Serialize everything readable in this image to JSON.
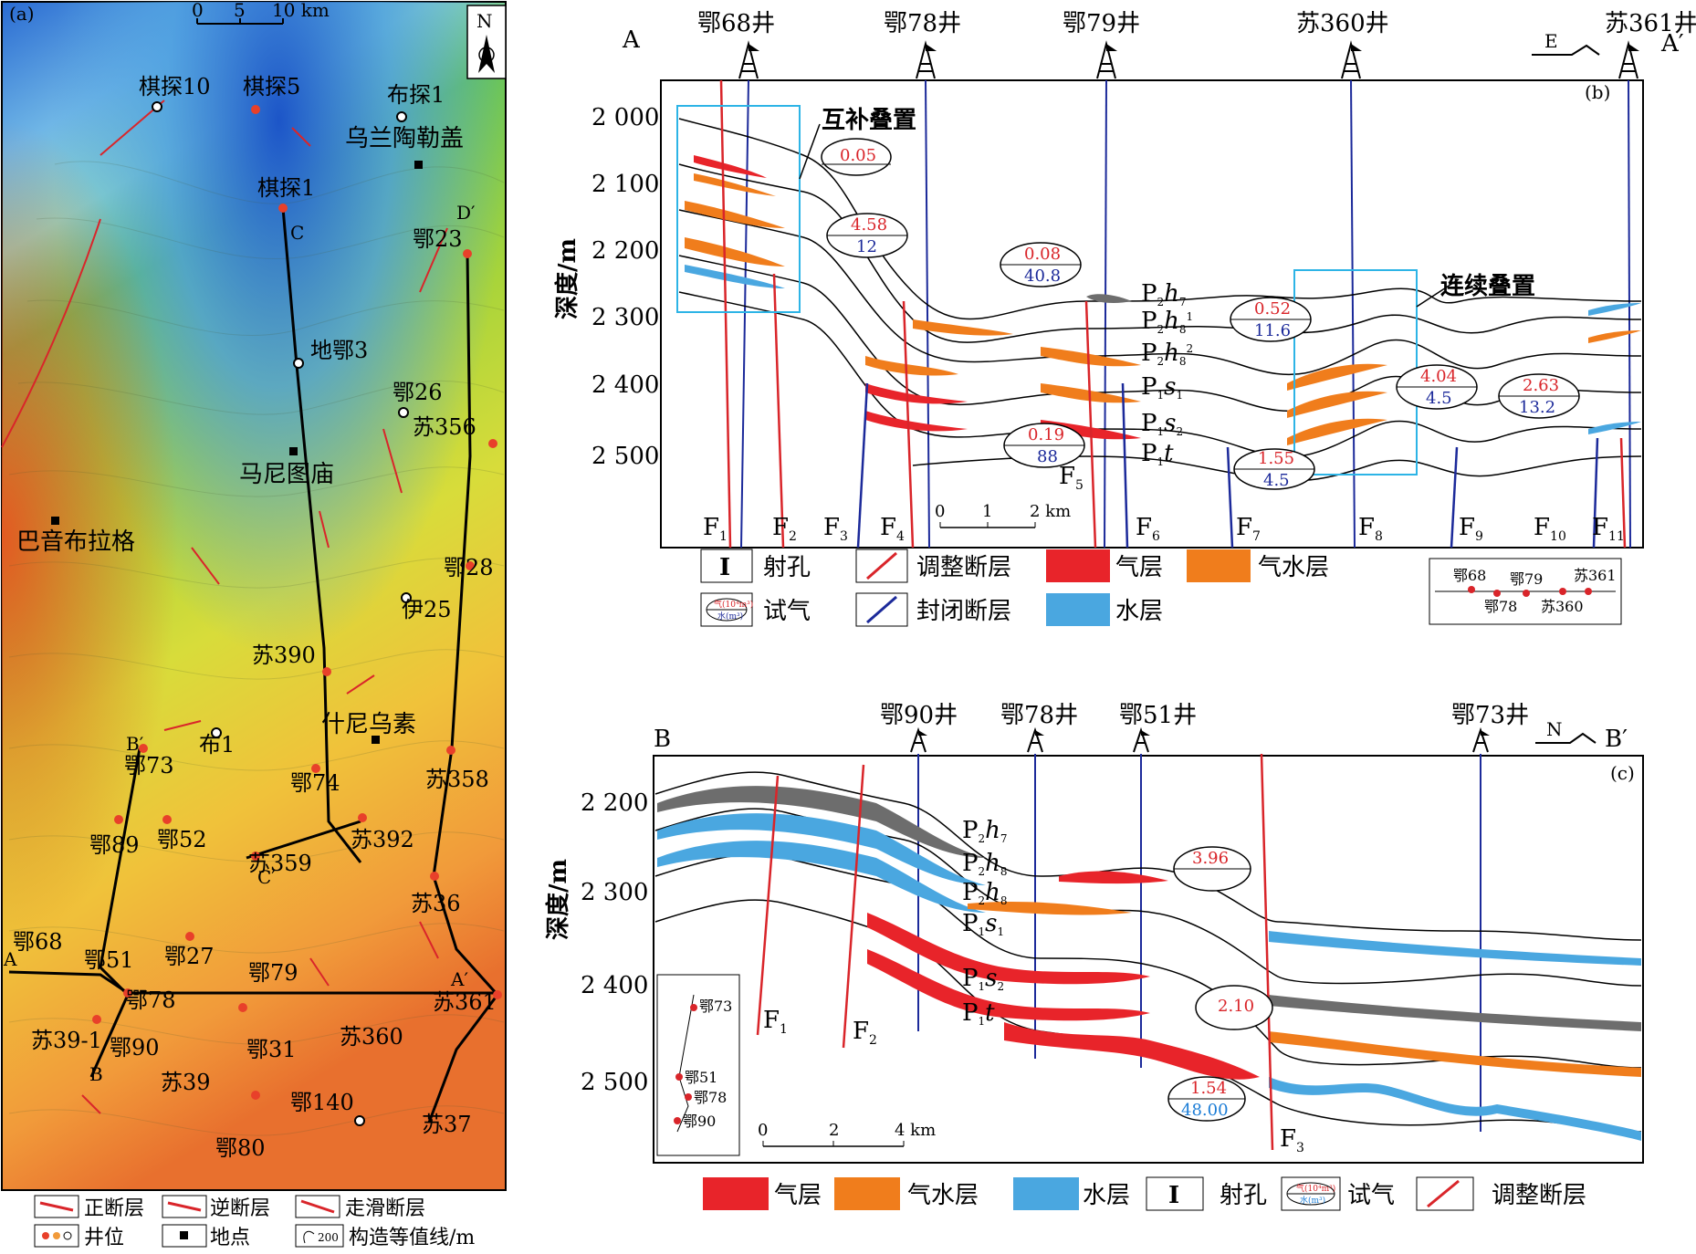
{
  "colors": {
    "gas": "#e8242a",
    "gas_water": "#f07d1c",
    "water": "#4aa7e0",
    "fault_adjust": "#d9252a",
    "fault_sealed": "#1c2a9a",
    "gray_layer": "#6d6d6d",
    "box": "#2db4e6",
    "test_red": "#d9252a",
    "test_blue": "#1c2a9a"
  },
  "map": {
    "panel_label": "(a)",
    "scale": [
      "0",
      "5",
      "10 km"
    ],
    "north": "N",
    "wells": [
      {
        "name": "棋探10"
      },
      {
        "name": "棋探5"
      },
      {
        "name": "布探1"
      },
      {
        "name": "棋探1"
      },
      {
        "name": "鄂23"
      },
      {
        "name": "地鄂3"
      },
      {
        "name": "鄂26"
      },
      {
        "name": "苏356"
      },
      {
        "name": "鄂28"
      },
      {
        "name": "伊25"
      },
      {
        "name": "苏390"
      },
      {
        "name": "布1"
      },
      {
        "name": "鄂73"
      },
      {
        "name": "鄂74"
      },
      {
        "name": "苏358"
      },
      {
        "name": "鄂89"
      },
      {
        "name": "鄂52"
      },
      {
        "name": "苏392"
      },
      {
        "name": "苏359"
      },
      {
        "name": "苏36"
      },
      {
        "name": "鄂68"
      },
      {
        "name": "鄂51"
      },
      {
        "name": "鄂27"
      },
      {
        "name": "鄂79"
      },
      {
        "name": "鄂78"
      },
      {
        "name": "苏361"
      },
      {
        "name": "苏39-1"
      },
      {
        "name": "鄂90"
      },
      {
        "name": "鄂31"
      },
      {
        "name": "苏360"
      },
      {
        "name": "苏39"
      },
      {
        "name": "鄂140"
      },
      {
        "name": "苏37"
      },
      {
        "name": "鄂80"
      }
    ],
    "places": [
      "乌兰陶勒盖",
      "马尼图庙",
      "巴音布拉格",
      "什尼乌素"
    ],
    "section_letters": [
      "C",
      "D′",
      "B′",
      "C′",
      "A",
      "A′",
      "B"
    ],
    "legend": [
      {
        "label": "正断层"
      },
      {
        "label": "逆断层"
      },
      {
        "label": "走滑断层"
      },
      {
        "label": "井位"
      },
      {
        "label": "地点"
      },
      {
        "label": "构造等值线/m"
      }
    ],
    "contour_sample": "200"
  },
  "section_b": {
    "panel_label": "(b)",
    "start": "A",
    "end": "A′",
    "direction": "E",
    "ylabel": "深度/m",
    "yticks": [
      "2 000",
      "2 100",
      "2 200",
      "2 300",
      "2 400",
      "2 500"
    ],
    "wells": [
      "鄂68井",
      "鄂78井",
      "鄂79井",
      "苏360井",
      "苏361井"
    ],
    "annotations": [
      "互补叠置",
      "连续叠置"
    ],
    "layers": [
      "P",
      "P",
      "P",
      "P",
      "P",
      "P"
    ],
    "layer_subs": [
      "2",
      "2",
      "2",
      "1",
      "1",
      "1"
    ],
    "layer_letters": [
      "h",
      "h",
      "h",
      "s",
      "s",
      "t"
    ],
    "layer_sub2": [
      "7",
      "8",
      "8",
      "1",
      "2",
      ""
    ],
    "layer_sup": [
      "",
      "1",
      "2",
      "",
      "",
      ""
    ],
    "tests": [
      {
        "gas": "0.05",
        "water": ""
      },
      {
        "gas": "4.58",
        "water": "12"
      },
      {
        "gas": "0.08",
        "water": "40.8"
      },
      {
        "gas": "0.52",
        "water": "11.6"
      },
      {
        "gas": "0.19",
        "water": "88"
      },
      {
        "gas": "1.55",
        "water": "4.5"
      },
      {
        "gas": "4.04",
        "water": "4.5"
      },
      {
        "gas": "2.63",
        "water": "13.2"
      }
    ],
    "faults": [
      "F",
      "F",
      "F",
      "F",
      "F",
      "F",
      "F",
      "F",
      "F",
      "F",
      "F"
    ],
    "fault_subs": [
      "1",
      "2",
      "3",
      "4",
      "5",
      "6",
      "7",
      "8",
      "9",
      "10",
      "11"
    ],
    "scale": [
      "0",
      "1",
      "2 km"
    ],
    "legend": [
      {
        "label": "射孔"
      },
      {
        "label": "调整断层"
      },
      {
        "label": "气层"
      },
      {
        "label": "气水层"
      },
      {
        "label": "试气"
      },
      {
        "label": "封闭断层"
      },
      {
        "label": "水层"
      }
    ],
    "legend_test_top": "气(10⁴m³)",
    "legend_test_bottom": "水(m³)",
    "inset_wells": [
      "鄂68",
      "鄂79",
      "苏361",
      "鄂78",
      "苏360"
    ]
  },
  "section_c": {
    "panel_label": "(c)",
    "start": "B",
    "end": "B′",
    "direction": "N",
    "ylabel": "深度/m",
    "yticks": [
      "2 200",
      "2 300",
      "2 400",
      "2 500"
    ],
    "wells": [
      "鄂90井",
      "鄂78井",
      "鄂51井",
      "鄂73井"
    ],
    "tests": [
      {
        "gas": "3.96",
        "water": ""
      },
      {
        "gas": "2.10",
        "water": ""
      },
      {
        "gas": "1.54",
        "water": "48.00"
      }
    ],
    "faults": [
      "F",
      "F",
      "F"
    ],
    "fault_subs": [
      "1",
      "2",
      "3"
    ],
    "scale": [
      "0",
      "2",
      "4 km"
    ],
    "inset_wells": [
      "鄂73",
      "鄂51",
      "鄂78",
      "鄂90"
    ],
    "legend": [
      {
        "label": "气层"
      },
      {
        "label": "气水层"
      },
      {
        "label": "水层"
      },
      {
        "label": "射孔"
      },
      {
        "label": "试气"
      },
      {
        "label": "调整断层"
      }
    ],
    "legend_test_top": "气(10⁴m³)",
    "legend_test_bottom": "水(m³)"
  }
}
